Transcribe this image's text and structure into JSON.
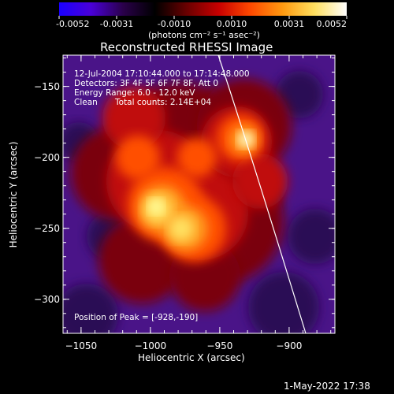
{
  "colorbar": {
    "tick_labels": [
      "-0.0052",
      "-0.0031",
      "-0.0010",
      "0.0010",
      "0.0031",
      "0.0052"
    ],
    "unit_label": "(photons cm⁻² s⁻¹ asec⁻²)",
    "colors": [
      "#1a00ff",
      "#4a00d8",
      "#2a004a",
      "#000000",
      "#6a0000",
      "#c80000",
      "#ff4a00",
      "#ff9a10",
      "#ffe060",
      "#ffffff"
    ]
  },
  "plot": {
    "title": "Reconstructed RHESSI Image",
    "xlabel": "Heliocentric X (arcsec)",
    "ylabel": "Heliocentric Y (arcsec)",
    "x_ticks": [
      "-1050",
      "-1000",
      "-950",
      "-900"
    ],
    "y_ticks": [
      "-150",
      "-200",
      "-250",
      "-300"
    ],
    "xlim": [
      -1063,
      -867
    ],
    "ylim": [
      -324,
      -128
    ],
    "annotations": {
      "time_range": "12-Jul-2004 17:10:44.000 to 17:14:48.000",
      "detectors": "Detectors: 3F 4F 5F 6F 7F 8F, Att 0",
      "energy": "Energy Range: 6.0 - 12.0 keV",
      "method": "Clean",
      "counts": "Total counts: 2.14E+04",
      "peak": "Position of Peak = [-928,-190]"
    },
    "peak_position": [
      -928,
      -190
    ],
    "limb_color": "#ffffff"
  },
  "footer": {
    "timestamp": "1-May-2022 17:38"
  }
}
